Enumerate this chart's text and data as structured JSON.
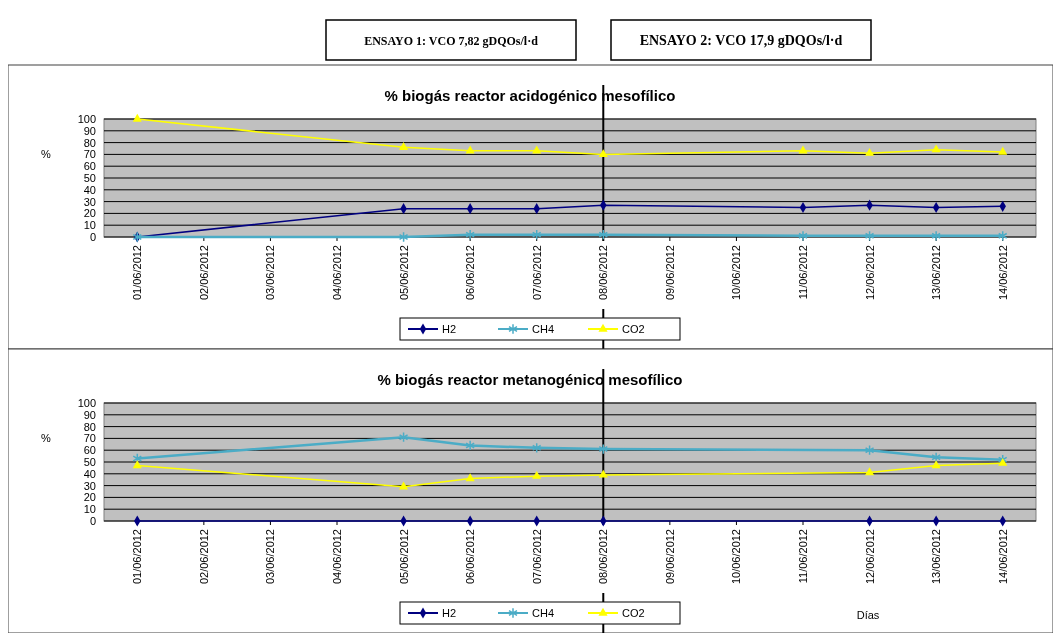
{
  "chart_data": [
    {
      "type": "line",
      "title": "% biogás reactor acidogénico mesofílico",
      "ylabel": "%",
      "annotations": [
        "ENSAYO 1: VCO 7,82 gDQOs/l·d",
        "ENSAYO 2: VCO 17,9 gDQOs/l·d"
      ],
      "xlim": [
        "2012-05-31T12:00",
        "2012-06-14T12:00"
      ],
      "xticks": [
        {
          "value": "2012-06-01",
          "label": "01/06/2012"
        },
        {
          "value": "2012-06-02",
          "label": "02/06/2012"
        },
        {
          "value": "2012-06-03",
          "label": "03/06/2012"
        },
        {
          "value": "2012-06-04",
          "label": "04/06/2012"
        },
        {
          "value": "2012-06-05",
          "label": "05/06/2012"
        },
        {
          "value": "2012-06-06",
          "label": "06/06/2012"
        },
        {
          "value": "2012-06-07",
          "label": "07/06/2012"
        },
        {
          "value": "2012-06-08",
          "label": "08/06/2012"
        },
        {
          "value": "2012-06-09",
          "label": "09/06/2012"
        },
        {
          "value": "2012-06-10",
          "label": "10/06/2012"
        },
        {
          "value": "2012-06-11",
          "label": "11/06/2012"
        },
        {
          "value": "2012-06-12",
          "label": "12/06/2012"
        },
        {
          "value": "2012-06-13",
          "label": "13/06/2012"
        },
        {
          "value": "2012-06-14",
          "label": "14/06/2012"
        }
      ],
      "ylim": [
        0,
        100
      ],
      "yticks": [
        0,
        10,
        20,
        30,
        40,
        50,
        60,
        70,
        80,
        90,
        100
      ],
      "grid": "y",
      "legend": "bottom",
      "ref_lines": [
        {
          "axis": "x",
          "value": "2012-06-08",
          "color": "#000000"
        }
      ],
      "x": [
        "2012-06-01",
        "2012-06-05",
        "2012-06-06",
        "2012-06-07",
        "2012-06-08",
        "2012-06-11",
        "2012-06-12",
        "2012-06-13",
        "2012-06-14"
      ],
      "series": [
        {
          "name": "H2",
          "color": "#000080",
          "marker": "diamond",
          "values": [
            0,
            24,
            24,
            24,
            27,
            25,
            27,
            25,
            26
          ]
        },
        {
          "name": "CH4",
          "color": "#4bacc6",
          "marker": "cross",
          "values": [
            0,
            0,
            2,
            2,
            2,
            1,
            1,
            1,
            1
          ]
        },
        {
          "name": "CO2",
          "color": "#ffff00",
          "marker": "triangle",
          "values": [
            100,
            76,
            73,
            73,
            70,
            73,
            71,
            74,
            72
          ]
        }
      ]
    },
    {
      "type": "line",
      "title": "% biogás reactor metanogénico mesofílico",
      "ylabel": "%",
      "xlabel": "Días",
      "xlim": [
        "2012-05-31T12:00",
        "2012-06-14T12:00"
      ],
      "xticks": [
        {
          "value": "2012-06-01",
          "label": "01/06/2012"
        },
        {
          "value": "2012-06-02",
          "label": "02/06/2012"
        },
        {
          "value": "2012-06-03",
          "label": "03/06/2012"
        },
        {
          "value": "2012-06-04",
          "label": "04/06/2012"
        },
        {
          "value": "2012-06-05",
          "label": "05/06/2012"
        },
        {
          "value": "2012-06-06",
          "label": "06/06/2012"
        },
        {
          "value": "2012-06-07",
          "label": "07/06/2012"
        },
        {
          "value": "2012-06-08",
          "label": "08/06/2012"
        },
        {
          "value": "2012-06-09",
          "label": "09/06/2012"
        },
        {
          "value": "2012-06-10",
          "label": "10/06/2012"
        },
        {
          "value": "2012-06-11",
          "label": "11/06/2012"
        },
        {
          "value": "2012-06-12",
          "label": "12/06/2012"
        },
        {
          "value": "2012-06-13",
          "label": "13/06/2012"
        },
        {
          "value": "2012-06-14",
          "label": "14/06/2012"
        }
      ],
      "ylim": [
        0,
        100
      ],
      "yticks": [
        0,
        10,
        20,
        30,
        40,
        50,
        60,
        70,
        80,
        90,
        100
      ],
      "grid": "y",
      "legend": "bottom",
      "ref_lines": [
        {
          "axis": "x",
          "value": "2012-06-08",
          "color": "#000000"
        }
      ],
      "x": [
        "2012-06-01",
        "2012-06-05",
        "2012-06-06",
        "2012-06-07",
        "2012-06-08",
        "2012-06-12",
        "2012-06-13",
        "2012-06-14"
      ],
      "series": [
        {
          "name": "H2",
          "color": "#000080",
          "marker": "diamond",
          "values": [
            0,
            0,
            0,
            0,
            0,
            0,
            0,
            0
          ]
        },
        {
          "name": "CH4",
          "color": "#4bacc6",
          "marker": "cross",
          "values": [
            53,
            71,
            64,
            62,
            61,
            60,
            54,
            52
          ]
        },
        {
          "name": "CO2",
          "color": "#ffff00",
          "marker": "triangle",
          "values": [
            47,
            29,
            36,
            38,
            39,
            41,
            47,
            49
          ]
        }
      ]
    }
  ]
}
